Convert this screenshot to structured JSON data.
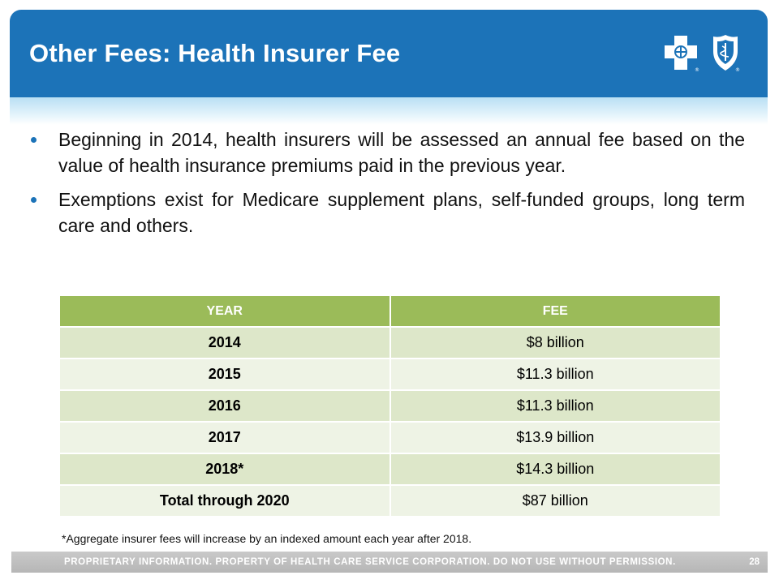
{
  "slide": {
    "title": "Other Fees: Health Insurer Fee",
    "bullets": [
      "Beginning in 2014, health insurers will be assessed an annual fee based on the value of health insurance premiums paid in the previous year.",
      "Exemptions exist for Medicare supplement plans, self-funded groups, long term care and others."
    ],
    "table": {
      "headers": [
        "YEAR",
        "FEE"
      ],
      "rows": [
        [
          "2014",
          "$8 billion"
        ],
        [
          "2015",
          "$11.3 billion"
        ],
        [
          "2016",
          "$11.3 billion"
        ],
        [
          "2017",
          "$13.9 billion"
        ],
        [
          "2018*",
          "$14.3 billion"
        ],
        [
          "Total through 2020",
          "$87 billion"
        ]
      ]
    },
    "footnote": "*Aggregate insurer fees will increase by an indexed amount each year after 2018.",
    "footer": "PROPRIETARY INFORMATION. PROPERTY OF HEALTH CARE SERVICE CORPORATION. DO NOT USE WITHOUT PERMISSION.",
    "page_number": "28",
    "icons": {
      "logo_cross": "blue-cross-logo",
      "logo_shield": "blue-shield-logo"
    },
    "colors": {
      "header": "#1c73b8",
      "table_header": "#9bbb59",
      "row_odd": "#dde7c9",
      "row_even": "#eef3e5",
      "footer": "#bdbdbd"
    }
  }
}
